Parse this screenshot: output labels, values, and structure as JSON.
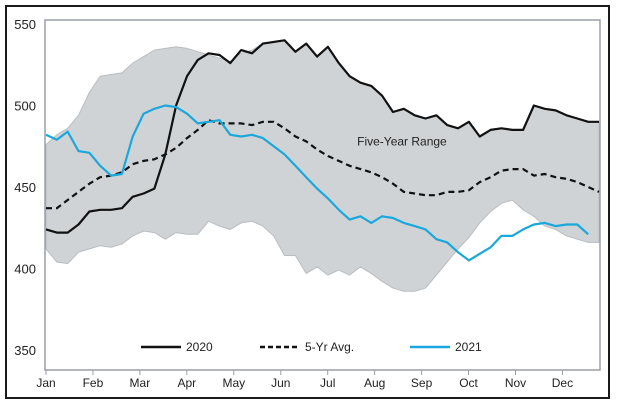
{
  "chart_data": {
    "type": "line",
    "title": "",
    "xlabel": "",
    "ylabel": "",
    "ylim": [
      350,
      550
    ],
    "yticks": [
      350,
      400,
      450,
      500,
      550
    ],
    "x_tick_labels": [
      "Jan",
      "Feb",
      "Mar",
      "Apr",
      "May",
      "Jun",
      "Jul",
      "Aug",
      "Sep",
      "Oct",
      "Nov",
      "Dec"
    ],
    "x_unit": "week",
    "x_range": [
      1,
      52
    ],
    "grid": false,
    "legend_position": "bottom",
    "annotations": [
      {
        "text": "Five-Year Range",
        "x_week": 32,
        "y": 478
      }
    ],
    "range_band": {
      "name": "Five-Year Range",
      "color": "#d0d3d6",
      "high": [
        476,
        482,
        486,
        494,
        508,
        518,
        519,
        520,
        526,
        530,
        534,
        535,
        536,
        535,
        533,
        531,
        529,
        527,
        532,
        534,
        538,
        539,
        540,
        533,
        538,
        530,
        536,
        526,
        518,
        514,
        512,
        506,
        496,
        498,
        494,
        492,
        494,
        488,
        486,
        490,
        481,
        485,
        486,
        485,
        485,
        500,
        498,
        497,
        494,
        492,
        490,
        490
      ],
      "low": [
        412,
        404,
        403,
        410,
        412,
        414,
        413,
        415,
        420,
        423,
        422,
        418,
        422,
        421,
        421,
        429,
        426,
        424,
        428,
        429,
        426,
        420,
        408,
        408,
        397,
        401,
        396,
        399,
        396,
        401,
        397,
        392,
        388,
        386,
        386,
        388,
        396,
        404,
        412,
        419,
        428,
        435,
        440,
        442,
        436,
        432,
        426,
        424,
        420,
        418,
        416,
        416
      ]
    },
    "series": [
      {
        "name": "2020",
        "color": "#111111",
        "style": "solid",
        "values": [
          424,
          422,
          422,
          427,
          435,
          436,
          436,
          437,
          444,
          446,
          449,
          470,
          500,
          518,
          528,
          532,
          531,
          526,
          534,
          532,
          538,
          539,
          540,
          533,
          538,
          530,
          536,
          526,
          518,
          514,
          512,
          506,
          496,
          498,
          494,
          492,
          494,
          488,
          486,
          490,
          481,
          485,
          486,
          485,
          485,
          500,
          498,
          497,
          494,
          492,
          490,
          490
        ]
      },
      {
        "name": "5-Yr Avg.",
        "color": "#111111",
        "style": "dashed",
        "values": [
          437,
          437,
          442,
          447,
          452,
          456,
          457,
          459,
          464,
          466,
          467,
          470,
          474,
          480,
          485,
          491,
          489,
          489,
          489,
          488,
          490,
          490,
          486,
          481,
          478,
          473,
          469,
          466,
          463,
          461,
          459,
          456,
          452,
          447,
          446,
          445,
          445,
          447,
          447,
          448,
          453,
          456,
          460,
          461,
          461,
          457,
          458,
          456,
          455,
          453,
          450,
          447
        ]
      },
      {
        "name": "2021",
        "color": "#1aa8dc",
        "style": "solid",
        "values": [
          482,
          479,
          484,
          472,
          471,
          463,
          457,
          458,
          481,
          495,
          498,
          500,
          499,
          495,
          489,
          490,
          491,
          482,
          481,
          482,
          480,
          475,
          470,
          463,
          456,
          449,
          443,
          436,
          430,
          432,
          428,
          432,
          431,
          428,
          426,
          424,
          418,
          416,
          410,
          405,
          409,
          413,
          420,
          420,
          424,
          427,
          428,
          426,
          427,
          427,
          421,
          null
        ]
      }
    ]
  }
}
